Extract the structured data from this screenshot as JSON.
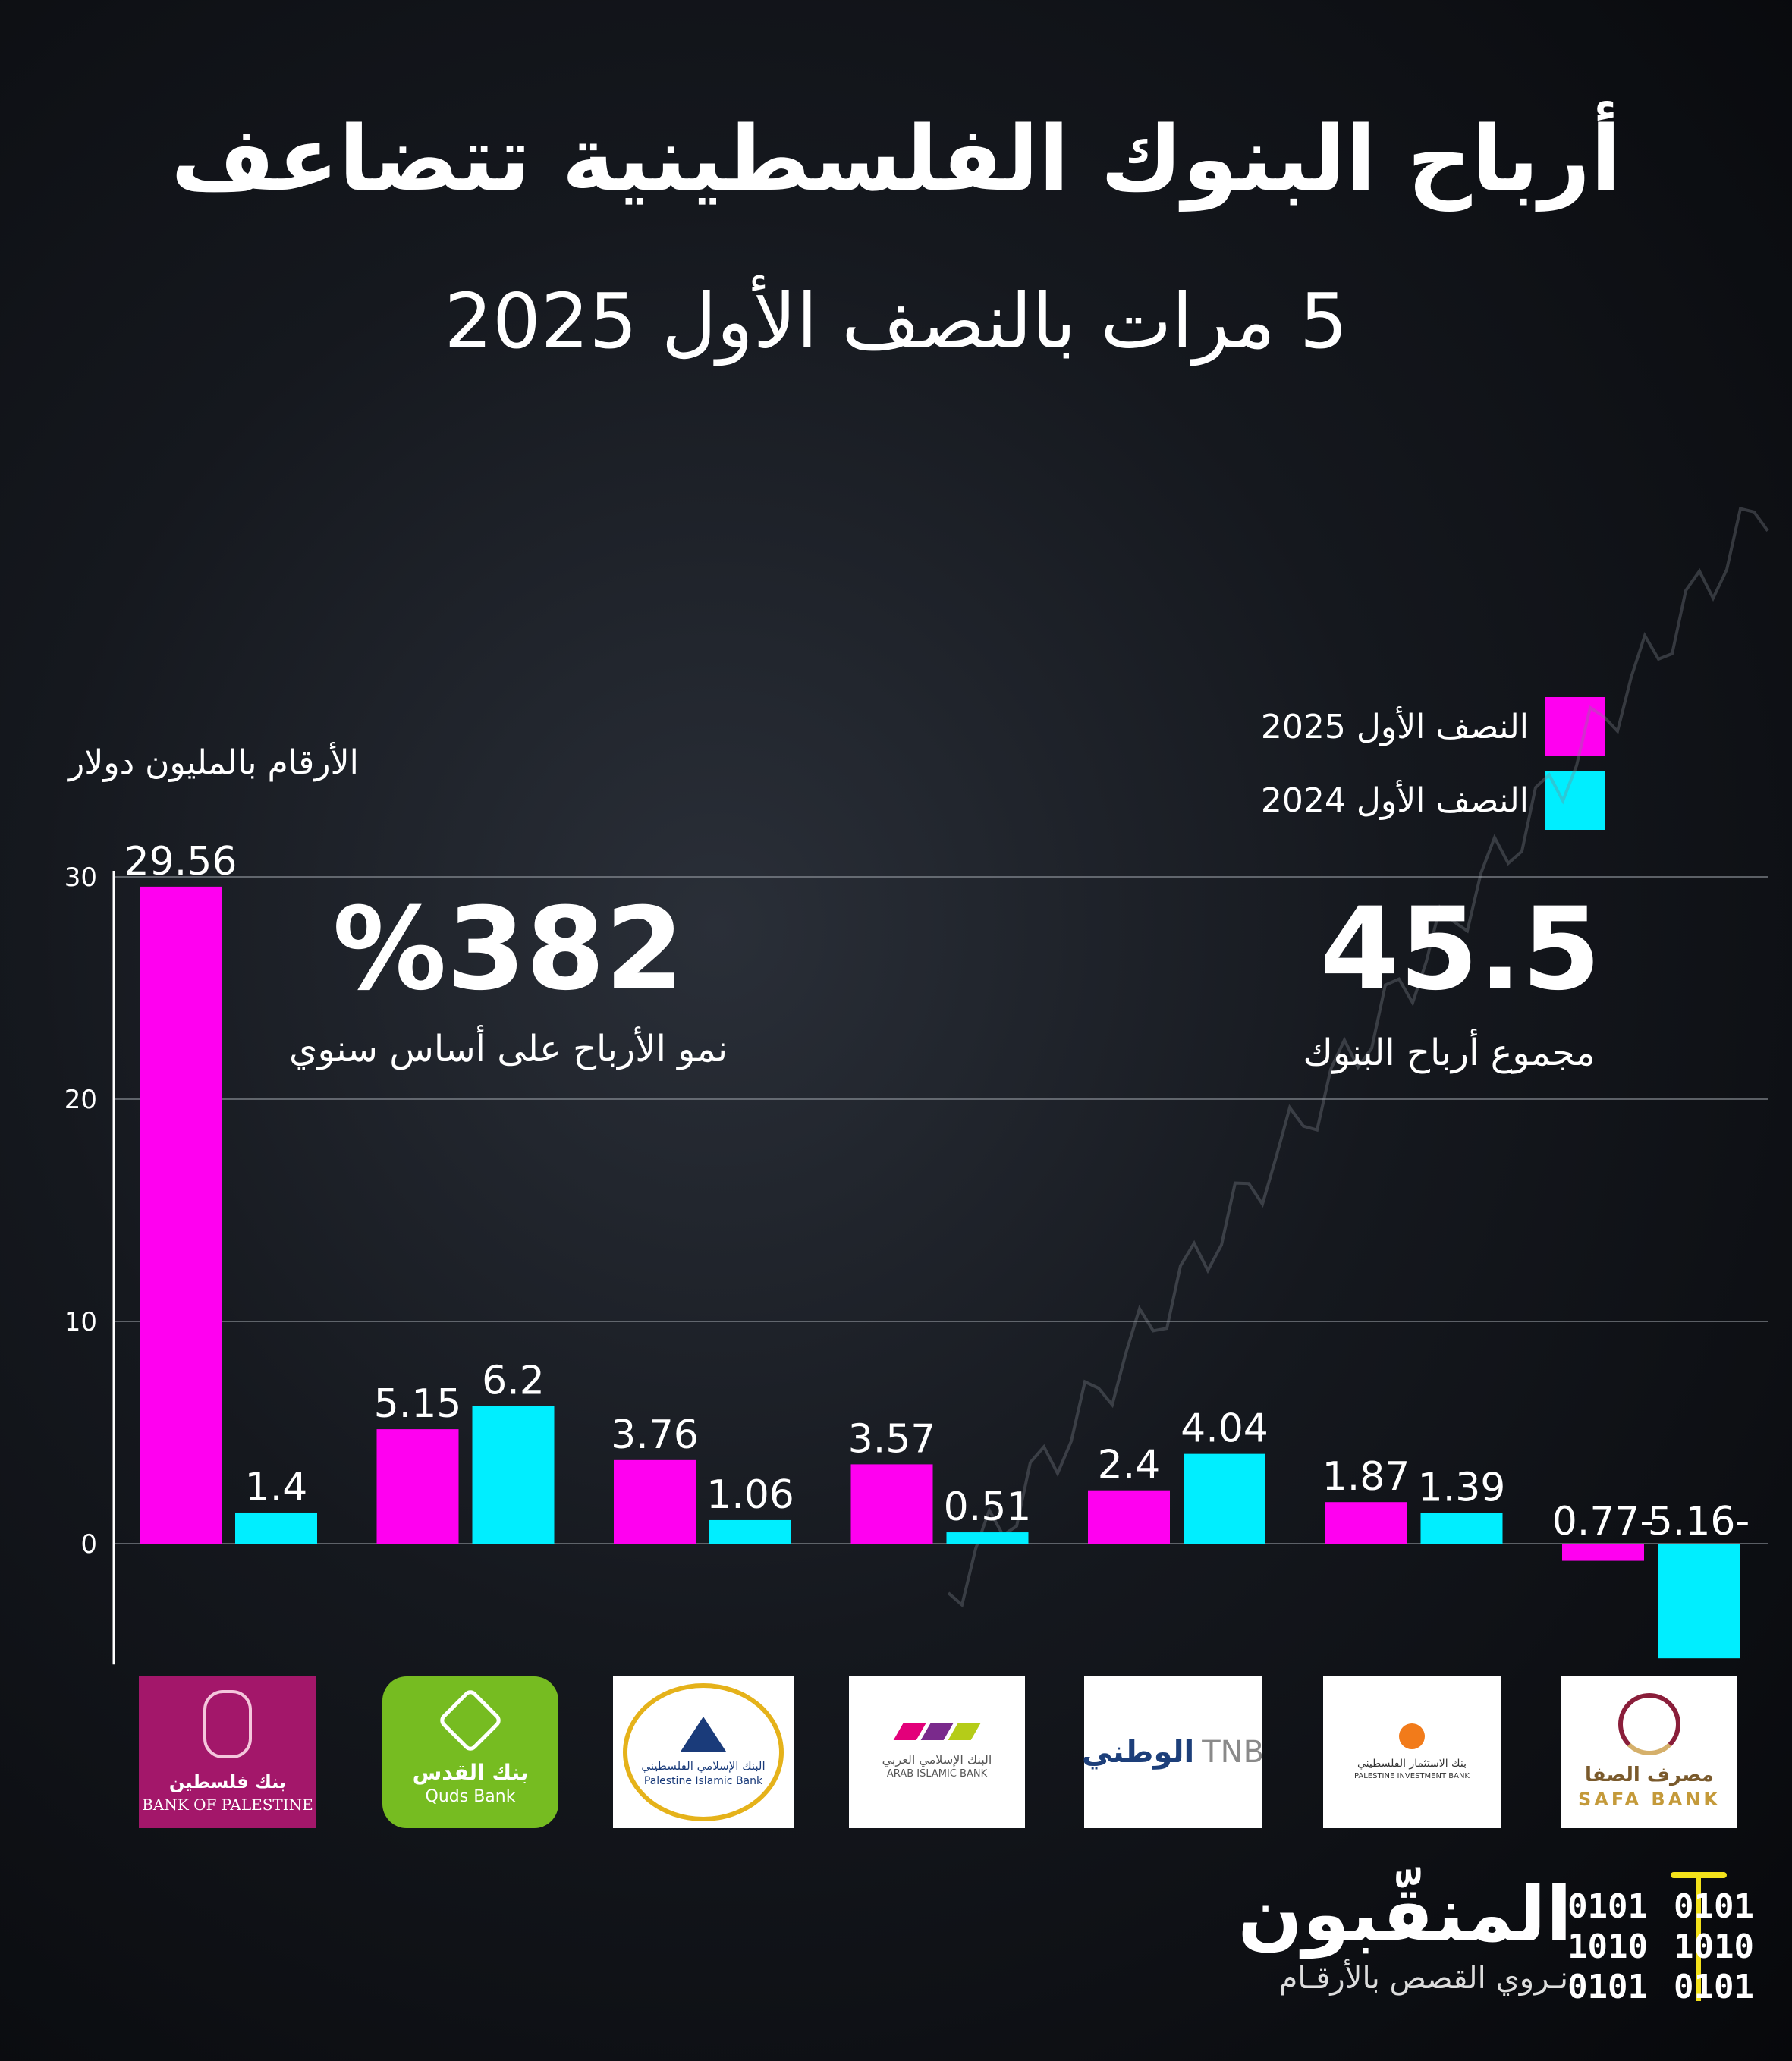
{
  "header": {
    "title": "أرباح البنوك الفلسطينية تتضاعف",
    "subtitle": "5 مرات بالنصف الأول 2025"
  },
  "legend": {
    "items": [
      {
        "label": "النصف الأول 2025",
        "color": "#ff00f0"
      },
      {
        "label": "النصف الأول 2024",
        "color": "#00eeff"
      }
    ]
  },
  "unit_label": "الأرقام بالمليون دولار",
  "kpis": {
    "growth": {
      "value": "%382",
      "label": "نمو الأرباح على أساس سنوي"
    },
    "total": {
      "value": "45.5",
      "label": "مجموع أرباح البنوك"
    }
  },
  "chart_data": {
    "type": "bar",
    "categories": [
      "BANK OF PALESTINE",
      "Quds Bank",
      "Palestine Islamic Bank",
      "ARAB ISLAMIC BANK",
      "TNB",
      "PALESTINE INVESTMENT BANK",
      "SAFA BANK"
    ],
    "series": [
      {
        "name": "النصف الأول 2025",
        "color": "#ff00f0",
        "values": [
          29.56,
          5.15,
          3.76,
          3.57,
          2.4,
          1.87,
          -0.77
        ],
        "labels": [
          "29.56",
          "5.15",
          "3.76",
          "3.57",
          "2.4",
          "1.87",
          "0.77-"
        ]
      },
      {
        "name": "النصف الأول 2024",
        "color": "#00eeff",
        "values": [
          1.4,
          6.2,
          1.06,
          0.51,
          4.04,
          1.39,
          -5.16
        ],
        "labels": [
          "1.4",
          "6.2",
          "1.06",
          "0.51",
          "4.04",
          "1.39",
          "5.16-"
        ]
      }
    ],
    "yticks": [
      "0",
      "10",
      "20",
      "30"
    ],
    "ylim": [
      -5.16,
      30
    ],
    "grid": true,
    "legend_position": "top-right"
  },
  "logos": {
    "bank_of_palestine": {
      "ar": "بنك فلسطين",
      "en": "BANK OF PALESTINE",
      "color": "#a3176a"
    },
    "quds_bank": {
      "ar": "بنك القدس",
      "en": "Quds Bank",
      "color": "#76bc21"
    },
    "palestine_islamic_bank": {
      "ar": "البنك الإسلامي الفلسطيني",
      "en": "Palestine Islamic Bank"
    },
    "arab_islamic_bank": {
      "ar": "البنك الإسلامي العربي",
      "en": "ARAB ISLAMIC BANK"
    },
    "tnb": {
      "ar": "الوطني",
      "en": "TNB"
    },
    "palestine_investment_bank": {
      "ar": "بنك الاستثمار الفلسطيني",
      "en": "PALESTINE INVESTMENT BANK"
    },
    "safa_bank": {
      "ar": "مصرف الصفا",
      "en": "SAFA BANK"
    }
  },
  "footer": {
    "brand": "المنقّبون",
    "tagline": "نـروي القصص بالأرقـام",
    "binary_left": [
      "0101",
      "1010",
      "0101"
    ],
    "binary_right": [
      "0101",
      "1010",
      "0101"
    ]
  }
}
